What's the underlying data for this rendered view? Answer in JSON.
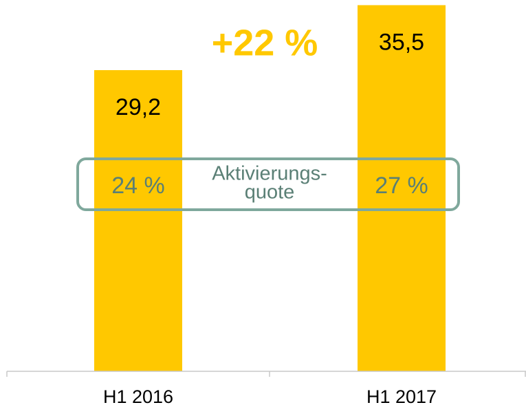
{
  "chart_data": {
    "type": "bar",
    "categories": [
      "H1 2016",
      "H1 2017"
    ],
    "values": [
      29.2,
      35.5
    ],
    "value_labels": [
      "29,2",
      "35,5"
    ],
    "color": "#ffc800",
    "ylim": [
      0,
      36
    ],
    "growth_annotation": "+22 %",
    "ratio_label": [
      "Aktivierungs-",
      "quote"
    ],
    "ratio_values": [
      "24 %",
      "27 %"
    ]
  }
}
